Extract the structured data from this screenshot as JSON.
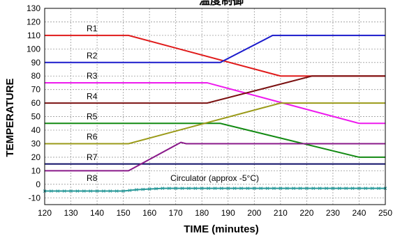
{
  "chart_data": {
    "type": "line",
    "title": "温度制御",
    "xlabel": "TIME (minutes)",
    "ylabel": "TEMPERATURE",
    "xlim": [
      120,
      250
    ],
    "ylim": [
      -15,
      130
    ],
    "x_ticks": [
      120,
      130,
      140,
      150,
      160,
      170,
      180,
      190,
      200,
      210,
      220,
      230,
      240,
      250
    ],
    "y_ticks": [
      -10,
      0,
      10,
      20,
      30,
      40,
      50,
      60,
      70,
      80,
      90,
      100,
      110,
      120,
      130
    ],
    "grid": true,
    "legend": "inline labels",
    "series": [
      {
        "name": "R1",
        "color": "#e01a1a",
        "label_at": [
          136,
          113
        ],
        "points": [
          [
            120,
            110
          ],
          [
            152,
            110
          ],
          [
            210,
            80
          ],
          [
            250,
            80
          ]
        ]
      },
      {
        "name": "R2",
        "color": "#1a1acc",
        "label_at": [
          136,
          93
        ],
        "points": [
          [
            120,
            90
          ],
          [
            187,
            90
          ],
          [
            207,
            110
          ],
          [
            250,
            110
          ]
        ]
      },
      {
        "name": "R3",
        "color": "#ee1aee",
        "label_at": [
          136,
          78
        ],
        "points": [
          [
            120,
            75
          ],
          [
            182,
            75
          ],
          [
            240,
            45
          ],
          [
            250,
            45
          ]
        ]
      },
      {
        "name": "R4",
        "color": "#7a1010",
        "label_at": [
          136,
          63
        ],
        "points": [
          [
            120,
            60
          ],
          [
            182,
            60
          ],
          [
            222,
            80
          ],
          [
            250,
            80
          ]
        ]
      },
      {
        "name": "R5",
        "color": "#128a12",
        "label_at": [
          136,
          48
        ],
        "points": [
          [
            120,
            45
          ],
          [
            187,
            45
          ],
          [
            240,
            20
          ],
          [
            250,
            20
          ]
        ]
      },
      {
        "name": "R6",
        "color": "#9a9a18",
        "label_at": [
          136,
          33
        ],
        "points": [
          [
            120,
            30
          ],
          [
            152,
            30
          ],
          [
            210,
            60
          ],
          [
            250,
            60
          ]
        ]
      },
      {
        "name": "R7",
        "color": "#0e0e66",
        "label_at": [
          136,
          18
        ],
        "points": [
          [
            120,
            15
          ],
          [
            250,
            15
          ]
        ]
      },
      {
        "name": "R8",
        "color": "#8a1a8a",
        "label_at": [
          136,
          2.5
        ],
        "points": [
          [
            120,
            10
          ],
          [
            152,
            10
          ],
          [
            172,
            31
          ],
          [
            174,
            30
          ],
          [
            250,
            30
          ]
        ]
      },
      {
        "name": "Circulator (approx -5°C)",
        "color": "#2a9a9a",
        "label_at": [
          168,
          2.5
        ],
        "marker": "x",
        "points": [
          [
            120,
            -5
          ],
          [
            140,
            -5
          ],
          [
            150,
            -5
          ],
          [
            155,
            -4
          ],
          [
            165,
            -3
          ],
          [
            180,
            -3
          ],
          [
            200,
            -3
          ],
          [
            220,
            -3
          ],
          [
            240,
            -3
          ],
          [
            250,
            -3
          ]
        ]
      }
    ]
  }
}
